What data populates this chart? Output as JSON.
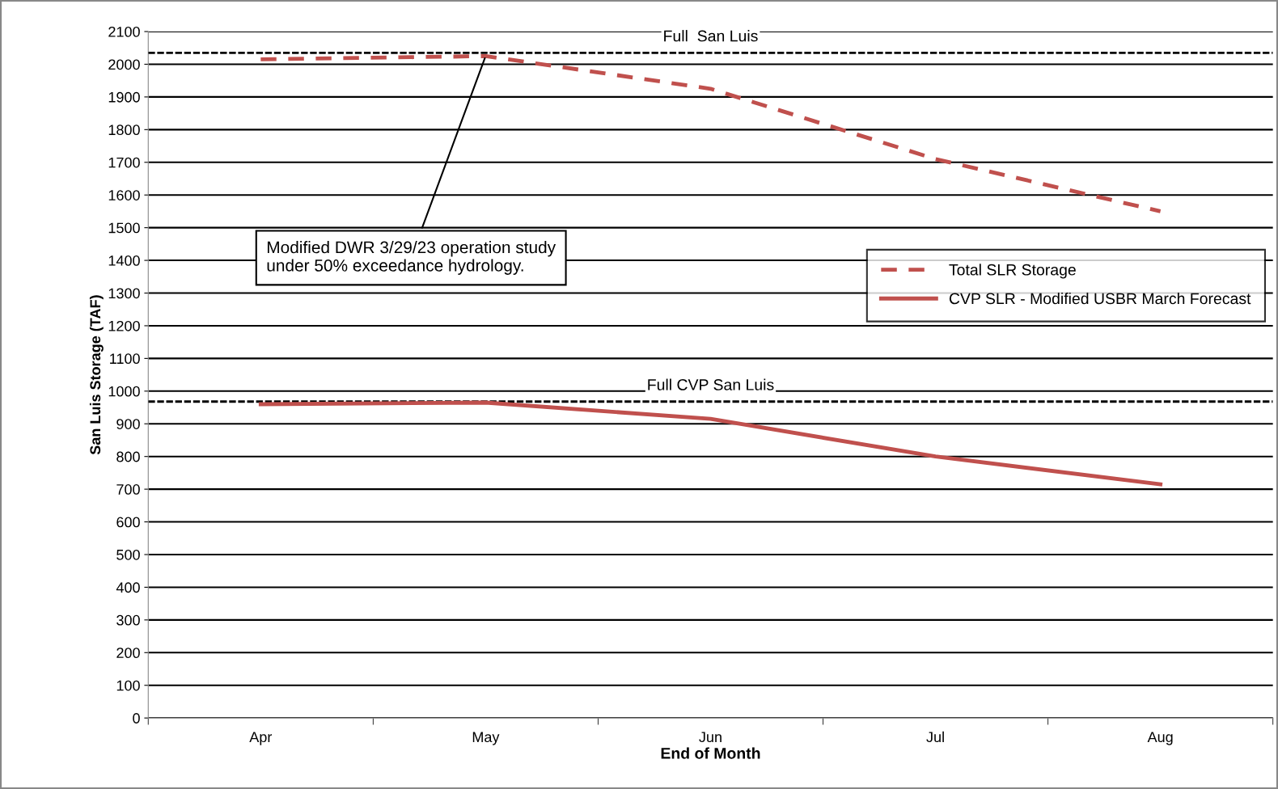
{
  "chart_data": {
    "type": "line",
    "xlabel": "End of Month",
    "ylabel": "San Luis Storage (TAF)",
    "categories": [
      "Apr",
      "May",
      "Jun",
      "Jul",
      "Aug"
    ],
    "series": [
      {
        "name": "Total SLR Storage",
        "color": "#c0504d",
        "line_style": "dashed",
        "values": [
          2015,
          2025,
          1925,
          1710,
          1550
        ]
      },
      {
        "name": "CVP SLR - Modified USBR March Forecast",
        "color": "#c0504d",
        "line_style": "solid",
        "values": [
          960,
          965,
          915,
          800,
          715
        ]
      }
    ],
    "ylim": [
      0,
      2100
    ],
    "yticks": [
      0,
      100,
      200,
      300,
      400,
      500,
      600,
      700,
      800,
      900,
      1000,
      1100,
      1200,
      1300,
      1400,
      1500,
      1600,
      1700,
      1800,
      1900,
      2000,
      2100
    ],
    "ref_lines": [
      {
        "axis": "y",
        "value": 2035,
        "label": "Full  San Luis",
        "color": "#000000",
        "line_style": "dashed"
      },
      {
        "axis": "y",
        "value": 968,
        "label": "Full CVP San Luis",
        "color": "#000000",
        "line_style": "dashed"
      }
    ],
    "annotations": [
      {
        "text": "Modified DWR 3/29/23 operation study\nunder 50% exceedance hydrology.",
        "x": "May",
        "y": 2025
      }
    ],
    "grid": "y",
    "legend": "right",
    "marker": "none"
  }
}
